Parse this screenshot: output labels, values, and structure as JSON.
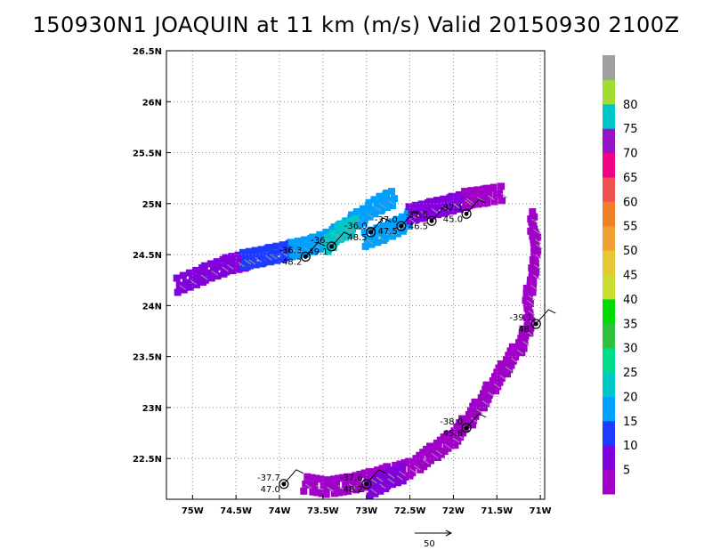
{
  "title": "150930N1 JOAQUIN at 11 km (m/s) Valid 20150930 2100Z",
  "vector_legend": {
    "label": "50"
  },
  "colorbar": {
    "labels": [
      "5",
      "10",
      "15",
      "20",
      "25",
      "30",
      "35",
      "40",
      "45",
      "50",
      "55",
      "60",
      "65",
      "70",
      "75",
      "80"
    ],
    "colors": [
      "#a000c8",
      "#8200dc",
      "#1e3cff",
      "#00a0ff",
      "#00c8c8",
      "#00dc8c",
      "#30c040",
      "#00dc00",
      "#c8dc32",
      "#e6c832",
      "#f0a032",
      "#f08028",
      "#f05050",
      "#f00082",
      "#9614c8",
      "#00c8c8",
      "#a0dc32",
      "#a0a0a0"
    ]
  },
  "chart_data": {
    "type": "heatmap",
    "title": "150930N1 JOAQUIN at 11 km (m/s) Valid 20150930 2100Z",
    "xlim": [
      -75.3,
      -70.95
    ],
    "ylim": [
      22.1,
      26.5
    ],
    "x_ticks": [
      -75,
      -74.5,
      -74,
      -73.5,
      -73,
      -72.5,
      -72,
      -71.5,
      -71
    ],
    "x_tick_labels": [
      "75W",
      "74.5W",
      "74W",
      "73.5W",
      "73W",
      "72.5W",
      "72W",
      "71.5W",
      "71W"
    ],
    "y_ticks": [
      22.5,
      23,
      23.5,
      24,
      24.5,
      25,
      25.5,
      26,
      26.5
    ],
    "y_tick_labels": [
      "22.5N",
      "23N",
      "23.5N",
      "24N",
      "24.5N",
      "25N",
      "25.5N",
      "26N",
      "26.5N"
    ],
    "grid": true,
    "bins": [
      5,
      10,
      15,
      20,
      25,
      30,
      35,
      40,
      45,
      50,
      55,
      60,
      65,
      70,
      75,
      80
    ],
    "swaths": [
      {
        "value": 10,
        "points": [
          [
            -75.15,
            24.2
          ],
          [
            -74.9,
            24.3
          ],
          [
            -74.6,
            24.4
          ],
          [
            -74.35,
            24.45
          ]
        ]
      },
      {
        "value": 15,
        "points": [
          [
            -74.4,
            24.45
          ],
          [
            -74.1,
            24.5
          ],
          [
            -73.85,
            24.55
          ]
        ]
      },
      {
        "value": 20,
        "points": [
          [
            -73.85,
            24.55
          ],
          [
            -73.6,
            24.6
          ],
          [
            -73.35,
            24.7
          ],
          [
            -73.1,
            24.85
          ],
          [
            -72.85,
            25.0
          ],
          [
            -72.7,
            25.05
          ]
        ]
      },
      {
        "value": 25,
        "points": [
          [
            -73.45,
            24.6
          ],
          [
            -73.3,
            24.72
          ],
          [
            -73.15,
            24.78
          ]
        ]
      },
      {
        "value": 20,
        "points": [
          [
            -73.0,
            24.65
          ],
          [
            -72.7,
            24.75
          ],
          [
            -72.5,
            24.85
          ]
        ]
      },
      {
        "value": 10,
        "points": [
          [
            -72.5,
            24.9
          ],
          [
            -72.25,
            24.95
          ],
          [
            -72.0,
            25.0
          ],
          [
            -71.8,
            25.05
          ]
        ]
      },
      {
        "value": 5,
        "points": [
          [
            -71.85,
            25.05
          ],
          [
            -71.6,
            25.08
          ],
          [
            -71.45,
            25.1
          ]
        ]
      },
      {
        "value": 5,
        "points": [
          [
            -71.1,
            24.85
          ],
          [
            -71.05,
            24.6
          ],
          [
            -71.08,
            24.3
          ],
          [
            -71.15,
            24.05
          ],
          [
            -71.12,
            23.85
          ],
          [
            -71.2,
            23.65
          ],
          [
            -71.4,
            23.4
          ],
          [
            -71.6,
            23.15
          ],
          [
            -71.8,
            22.9
          ],
          [
            -72.0,
            22.7
          ],
          [
            -72.25,
            22.55
          ],
          [
            -72.5,
            22.4
          ],
          [
            -72.75,
            22.35
          ],
          [
            -72.95,
            22.3
          ],
          [
            -73.2,
            22.25
          ],
          [
            -73.45,
            22.22
          ],
          [
            -73.7,
            22.25
          ]
        ]
      },
      {
        "value": 10,
        "points": [
          [
            -72.95,
            22.2
          ],
          [
            -72.75,
            22.3
          ],
          [
            -72.6,
            22.35
          ]
        ]
      }
    ],
    "labeled_points": [
      {
        "lon": -73.7,
        "lat": 24.48,
        "top": "-36.3",
        "bottom": "48.2"
      },
      {
        "lon": -73.4,
        "lat": 24.58,
        "top": "-36.",
        "bottom": "49.1"
      },
      {
        "lon": -72.95,
        "lat": 24.72,
        "top": "-36.0",
        "bottom": "48.5"
      },
      {
        "lon": -72.6,
        "lat": 24.78,
        "top": "-37.0",
        "bottom": "47.5"
      },
      {
        "lon": -72.25,
        "lat": 24.83,
        "top": "-37.5",
        "bottom": "46.5"
      },
      {
        "lon": -71.85,
        "lat": 24.9,
        "top": "-37.1",
        "bottom": "45.0"
      },
      {
        "lon": -71.05,
        "lat": 23.82,
        "top": "-39.1",
        "bottom": "48."
      },
      {
        "lon": -71.85,
        "lat": 22.8,
        "top": "-38.0",
        "bottom": "45.8"
      },
      {
        "lon": -73.95,
        "lat": 22.25,
        "top": "-37.7",
        "bottom": "47.0"
      },
      {
        "lon": -73.0,
        "lat": 22.25,
        "top": "-37.6",
        "bottom": "48.2"
      }
    ]
  }
}
